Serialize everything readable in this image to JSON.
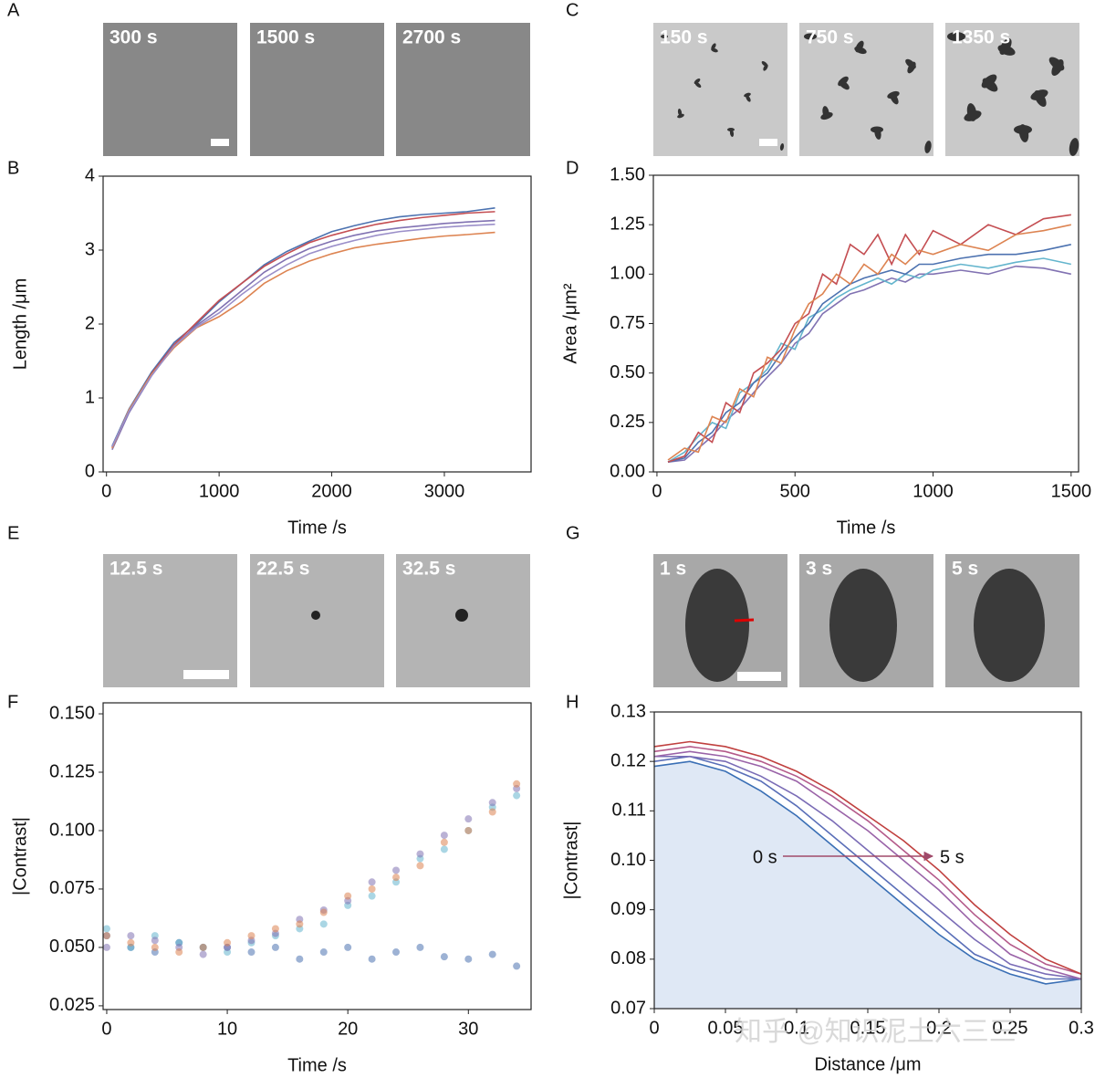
{
  "panel_images": [
    {
      "panel": "A",
      "labels": [
        "300 s",
        "1500 s",
        "2700 s"
      ]
    },
    {
      "panel": "C",
      "labels": [
        "150 s",
        "750 s",
        "1350 s"
      ]
    },
    {
      "panel": "E",
      "labels": [
        "12.5 s",
        "22.5 s",
        "32.5 s"
      ]
    },
    {
      "panel": "G",
      "labels": [
        "1 s",
        "3 s",
        "5 s"
      ]
    }
  ],
  "watermark": "知乎 @知识泥土六三三",
  "chart_data": [
    {
      "type": "line",
      "panel": "B",
      "x_label": "Time /s",
      "y_label": "Length /μm",
      "xlim": [
        -30,
        3770
      ],
      "ylim": [
        0,
        4
      ],
      "xticks": [
        0,
        1000,
        2000,
        3000
      ],
      "yticks": [
        0,
        1,
        2,
        3,
        4
      ],
      "x": [
        50,
        200,
        400,
        600,
        800,
        1000,
        1200,
        1400,
        1600,
        1800,
        2000,
        2200,
        2400,
        2600,
        2800,
        3000,
        3200,
        3450
      ],
      "series": [
        {
          "color": "#4c72b0",
          "values": [
            0.35,
            0.85,
            1.35,
            1.75,
            2.0,
            2.3,
            2.55,
            2.8,
            2.98,
            3.12,
            3.25,
            3.33,
            3.4,
            3.45,
            3.48,
            3.5,
            3.52,
            3.57
          ]
        },
        {
          "color": "#c44e52",
          "values": [
            0.33,
            0.83,
            1.33,
            1.72,
            2.02,
            2.32,
            2.55,
            2.78,
            2.95,
            3.1,
            3.2,
            3.28,
            3.35,
            3.4,
            3.44,
            3.47,
            3.5,
            3.52
          ]
        },
        {
          "color": "#8172b2",
          "values": [
            0.3,
            0.8,
            1.3,
            1.7,
            1.98,
            2.2,
            2.45,
            2.7,
            2.88,
            3.02,
            3.12,
            3.2,
            3.26,
            3.3,
            3.33,
            3.36,
            3.38,
            3.4
          ]
        },
        {
          "color": "#dd8452",
          "values": [
            0.32,
            0.84,
            1.32,
            1.68,
            1.95,
            2.1,
            2.3,
            2.55,
            2.72,
            2.85,
            2.95,
            3.03,
            3.08,
            3.12,
            3.16,
            3.19,
            3.21,
            3.24
          ]
        },
        {
          "color": "#9b8fc9",
          "values": [
            0.34,
            0.82,
            1.3,
            1.7,
            1.96,
            2.15,
            2.4,
            2.62,
            2.8,
            2.95,
            3.05,
            3.13,
            3.2,
            3.25,
            3.28,
            3.31,
            3.33,
            3.35
          ]
        }
      ]
    },
    {
      "type": "line",
      "panel": "D",
      "x_label": "Time /s",
      "y_label": "Area /μm²",
      "xlim": [
        -13,
        1527
      ],
      "ylim": [
        0,
        1.5
      ],
      "xticks": [
        0,
        500,
        1000,
        1500
      ],
      "yticks": [
        {
          "value": 0,
          "label": "0.00"
        },
        0.25,
        {
          "value": 0.5,
          "label": "0.50"
        },
        0.75,
        {
          "value": 1,
          "label": "1.00"
        },
        1.25,
        {
          "value": 1.5,
          "label": "1.50"
        }
      ],
      "x": [
        40,
        100,
        150,
        200,
        250,
        300,
        350,
        400,
        450,
        500,
        550,
        600,
        650,
        700,
        750,
        800,
        850,
        900,
        950,
        1000,
        1100,
        1200,
        1300,
        1400,
        1500
      ],
      "series": [
        {
          "color": "#8172b2",
          "values": [
            0.05,
            0.06,
            0.12,
            0.18,
            0.26,
            0.32,
            0.4,
            0.48,
            0.55,
            0.65,
            0.7,
            0.8,
            0.85,
            0.9,
            0.92,
            0.95,
            0.98,
            0.96,
            1.0,
            1.0,
            1.02,
            1.0,
            1.04,
            1.03,
            1.0
          ]
        },
        {
          "color": "#64b5cd",
          "values": [
            0.05,
            0.1,
            0.18,
            0.25,
            0.22,
            0.4,
            0.45,
            0.52,
            0.65,
            0.62,
            0.78,
            0.82,
            0.88,
            0.92,
            0.95,
            0.98,
            0.95,
            1.0,
            0.98,
            1.02,
            1.05,
            1.03,
            1.06,
            1.08,
            1.05
          ]
        },
        {
          "color": "#4c72b0",
          "values": [
            0.05,
            0.07,
            0.15,
            0.2,
            0.3,
            0.35,
            0.45,
            0.5,
            0.6,
            0.68,
            0.75,
            0.85,
            0.9,
            0.95,
            0.98,
            1.0,
            1.02,
            1.0,
            1.05,
            1.05,
            1.08,
            1.1,
            1.1,
            1.12,
            1.15
          ]
        },
        {
          "color": "#c44e52",
          "values": [
            0.05,
            0.08,
            0.2,
            0.15,
            0.35,
            0.3,
            0.5,
            0.55,
            0.62,
            0.75,
            0.8,
            1.0,
            0.95,
            1.15,
            1.1,
            1.2,
            1.05,
            1.2,
            1.1,
            1.22,
            1.15,
            1.25,
            1.2,
            1.28,
            1.3
          ]
        },
        {
          "color": "#dd8452",
          "values": [
            0.06,
            0.12,
            0.1,
            0.28,
            0.25,
            0.42,
            0.38,
            0.58,
            0.55,
            0.72,
            0.85,
            0.9,
            1.0,
            0.95,
            1.05,
            1.0,
            1.1,
            1.05,
            1.12,
            1.1,
            1.15,
            1.12,
            1.2,
            1.22,
            1.25
          ]
        }
      ]
    },
    {
      "type": "scatter",
      "panel": "F",
      "x_label": "Time /s",
      "y_label": "|Contrast|",
      "xlim": [
        -0.3,
        35.2
      ],
      "ylim": [
        0.0234,
        0.1547
      ],
      "xticks": [
        0,
        10,
        20,
        30
      ],
      "yticks": [
        0.025,
        {
          "value": 0.05,
          "label": "0.050"
        },
        0.075,
        {
          "value": 0.1,
          "label": "0.100"
        },
        0.125,
        {
          "value": 0.15,
          "label": "0.150"
        }
      ],
      "x": [
        0,
        2,
        4,
        6,
        8,
        10,
        12,
        14,
        16,
        18,
        20,
        22,
        24,
        26,
        28,
        30,
        32,
        34
      ],
      "series": [
        {
          "color": "#4c72b0",
          "values": [
            0.055,
            0.05,
            0.048,
            0.052,
            0.05,
            0.05,
            0.048,
            0.05,
            0.045,
            0.048,
            0.05,
            0.045,
            0.048,
            0.05,
            0.046,
            0.045,
            0.047,
            0.042
          ]
        },
        {
          "color": "#64b5cd",
          "values": [
            0.058,
            0.05,
            0.055,
            0.052,
            0.05,
            0.048,
            0.052,
            0.055,
            0.058,
            0.06,
            0.068,
            0.072,
            0.078,
            0.088,
            0.092,
            0.1,
            0.11,
            0.115
          ]
        },
        {
          "color": "#8172b2",
          "values": [
            0.05,
            0.055,
            0.053,
            0.05,
            0.047,
            0.05,
            0.053,
            0.056,
            0.062,
            0.066,
            0.07,
            0.078,
            0.083,
            0.09,
            0.098,
            0.105,
            0.112,
            0.118
          ]
        },
        {
          "color": "#dd8452",
          "values": [
            0.055,
            0.052,
            0.05,
            0.048,
            0.05,
            0.052,
            0.055,
            0.058,
            0.06,
            0.065,
            0.072,
            0.075,
            0.08,
            0.085,
            0.095,
            0.1,
            0.108,
            0.12
          ]
        }
      ]
    },
    {
      "type": "line",
      "panel": "H",
      "x_label": "Distance /μm",
      "y_label": "|Contrast|",
      "xlim": [
        0,
        0.3
      ],
      "ylim": [
        0.07,
        0.13
      ],
      "xticks": [
        0,
        0.05,
        0.1,
        0.15,
        0.2,
        0.25,
        0.3
      ],
      "yticks": [
        0.07,
        0.08,
        0.09,
        {
          "value": 0.1,
          "label": "0.10"
        },
        0.11,
        0.12,
        0.13
      ],
      "annotations": [
        "0 s",
        "5 s"
      ],
      "x": [
        0,
        0.025,
        0.05,
        0.075,
        0.1,
        0.125,
        0.15,
        0.175,
        0.2,
        0.225,
        0.25,
        0.275,
        0.3
      ],
      "series": [
        {
          "color": "#3a6fb5",
          "fill": "#dfe8f5",
          "values": [
            0.119,
            0.12,
            0.118,
            0.114,
            0.109,
            0.103,
            0.097,
            0.091,
            0.085,
            0.08,
            0.077,
            0.075,
            0.076
          ]
        },
        {
          "color": "#5a6fb8",
          "values": [
            0.12,
            0.121,
            0.119,
            0.116,
            0.111,
            0.105,
            0.099,
            0.093,
            0.087,
            0.081,
            0.078,
            0.076,
            0.076
          ]
        },
        {
          "color": "#7a6cb6",
          "values": [
            0.121,
            0.121,
            0.12,
            0.117,
            0.113,
            0.108,
            0.102,
            0.096,
            0.09,
            0.084,
            0.079,
            0.077,
            0.076
          ]
        },
        {
          "color": "#9a63a8",
          "values": [
            0.121,
            0.122,
            0.121,
            0.119,
            0.116,
            0.111,
            0.106,
            0.1,
            0.094,
            0.087,
            0.081,
            0.078,
            0.076
          ]
        },
        {
          "color": "#b45a8a",
          "values": [
            0.122,
            0.123,
            0.122,
            0.12,
            0.117,
            0.113,
            0.108,
            0.102,
            0.096,
            0.089,
            0.083,
            0.079,
            0.077
          ]
        },
        {
          "color": "#c0403f",
          "values": [
            0.123,
            0.124,
            0.123,
            0.121,
            0.118,
            0.114,
            0.109,
            0.104,
            0.098,
            0.091,
            0.085,
            0.08,
            0.077
          ]
        }
      ]
    }
  ]
}
